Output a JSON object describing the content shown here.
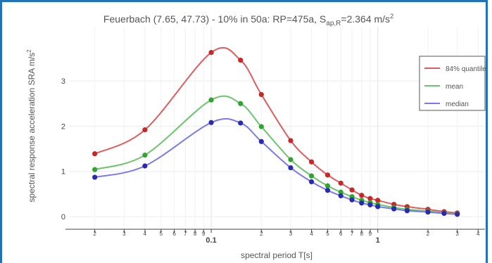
{
  "chart_data": {
    "type": "line",
    "title": {
      "prefix": "Feuerbach (7.65, 47.73) - 10% in 50a: RP=475a, S",
      "subscript": "ap,R",
      "suffix": "=2.364 m/s",
      "superscript": "2"
    },
    "xlabel": "spectral period T[s]",
    "ylabel": {
      "text": "spectral response acceleration SRA m/s",
      "superscript": "2"
    },
    "x_scale": "log",
    "xlim": [
      0.014,
      4.4
    ],
    "ylim": [
      -0.28,
      4.2
    ],
    "grid": true,
    "legend_position": "top-right",
    "y_ticks": [
      0,
      1,
      2,
      3
    ],
    "x_ticks": {
      "major": [
        {
          "value": 0.1,
          "label": "0.1"
        },
        {
          "value": 1,
          "label": "1"
        }
      ],
      "minor": [
        {
          "value": 0.02,
          "label": "2"
        },
        {
          "value": 0.03,
          "label": "3"
        },
        {
          "value": 0.04,
          "label": "4"
        },
        {
          "value": 0.05,
          "label": "5"
        },
        {
          "value": 0.06,
          "label": "6"
        },
        {
          "value": 0.07,
          "label": "7"
        },
        {
          "value": 0.08,
          "label": "8"
        },
        {
          "value": 0.09,
          "label": "9"
        },
        {
          "value": 0.2,
          "label": "2"
        },
        {
          "value": 0.3,
          "label": "3"
        },
        {
          "value": 0.4,
          "label": "4"
        },
        {
          "value": 0.5,
          "label": "5"
        },
        {
          "value": 0.6,
          "label": "6"
        },
        {
          "value": 0.7,
          "label": "7"
        },
        {
          "value": 0.8,
          "label": "8"
        },
        {
          "value": 0.9,
          "label": "9"
        },
        {
          "value": 2,
          "label": "2"
        },
        {
          "value": 3,
          "label": "3"
        },
        {
          "value": 4,
          "label": "4"
        }
      ]
    },
    "x": [
      0.02,
      0.04,
      0.1,
      0.15,
      0.2,
      0.3,
      0.4,
      0.5,
      0.6,
      0.7,
      0.8,
      0.9,
      1.0,
      1.25,
      1.5,
      2.0,
      2.5,
      3.0
    ],
    "series": [
      {
        "name": "84% quantile",
        "color": "#e05c5c",
        "marker_color": "#c62828",
        "values": [
          1.39,
          1.92,
          3.63,
          3.46,
          2.7,
          1.68,
          1.21,
          0.92,
          0.74,
          0.59,
          0.47,
          0.4,
          0.36,
          0.27,
          0.22,
          0.16,
          0.11,
          0.08
        ]
      },
      {
        "name": "mean",
        "color": "#6cc46c",
        "marker_color": "#2fa52f",
        "values": [
          1.04,
          1.36,
          2.58,
          2.5,
          1.99,
          1.26,
          0.9,
          0.68,
          0.54,
          0.44,
          0.36,
          0.31,
          0.27,
          0.2,
          0.16,
          0.12,
          0.08,
          0.06
        ]
      },
      {
        "name": "median",
        "color": "#7a7af0",
        "marker_color": "#2a2ab0",
        "values": [
          0.87,
          1.12,
          2.08,
          2.07,
          1.66,
          1.08,
          0.77,
          0.58,
          0.46,
          0.37,
          0.3,
          0.26,
          0.22,
          0.17,
          0.13,
          0.1,
          0.07,
          0.05
        ]
      }
    ]
  }
}
